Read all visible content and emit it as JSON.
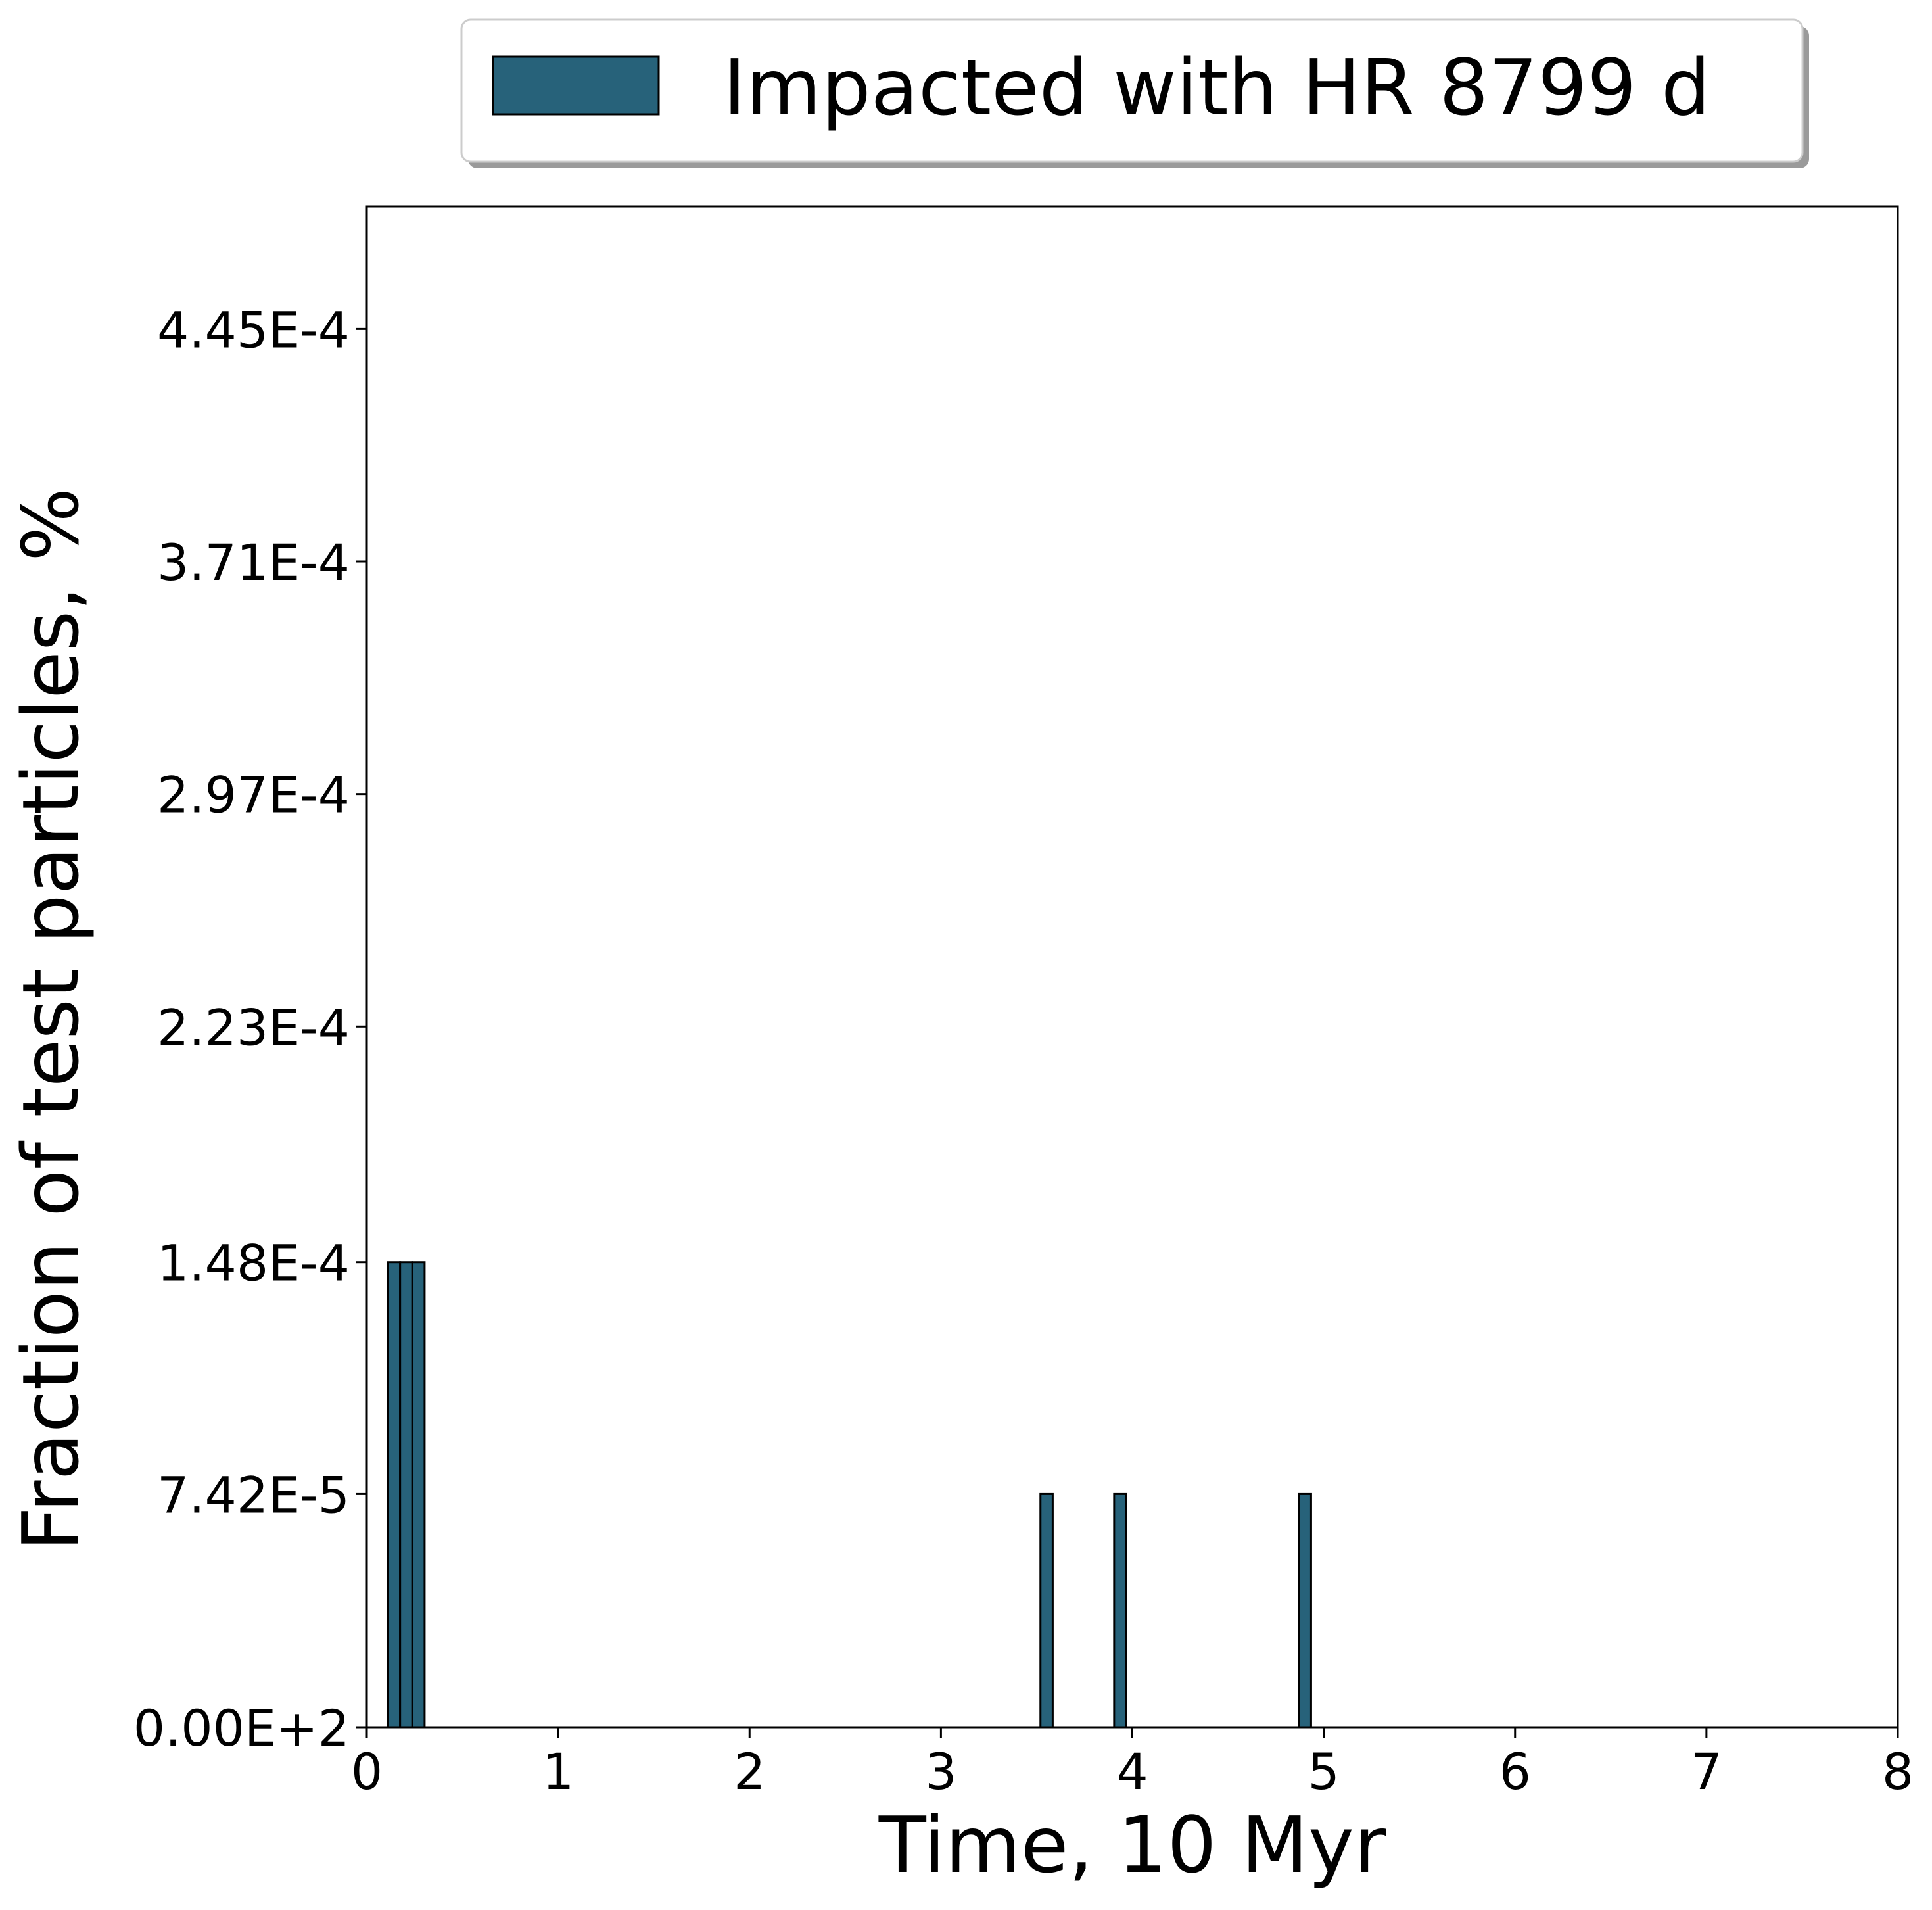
{
  "chart_data": {
    "type": "bar",
    "xlabel": "Time, 10 Myr",
    "ylabel": "Fraction of test particles, %",
    "xlim": [
      0,
      8
    ],
    "ylim": [
      0,
      0.000484
    ],
    "x_ticks": [
      0,
      1,
      2,
      3,
      4,
      5,
      6,
      7,
      8
    ],
    "x_tick_labels": [
      "0",
      "1",
      "2",
      "3",
      "4",
      "5",
      "6",
      "7",
      "8"
    ],
    "y_ticks": [
      0,
      7.42e-05,
      0.000148,
      0.000223,
      0.000297,
      0.000371,
      0.000445
    ],
    "y_tick_labels": [
      "0.00E+2",
      "7.42E-5",
      "1.48E-4",
      "2.23E-4",
      "2.97E-4",
      "3.71E-4",
      "4.45E-4"
    ],
    "grid": false,
    "legend": {
      "placement": "top-center, outside plot",
      "entries": [
        "Impacted with HR 8799 d"
      ]
    },
    "series": [
      {
        "name": "Impacted with HR 8799 d",
        "color": "#27627a",
        "edge_color": "#000000",
        "bin_width": 0.064,
        "bars": [
          {
            "x_start": 0.11,
            "value": 0.000148
          },
          {
            "x_start": 0.174,
            "value": 0.000148
          },
          {
            "x_start": 0.238,
            "value": 0.000148
          },
          {
            "x_start": 3.52,
            "value": 7.42e-05
          },
          {
            "x_start": 3.905,
            "value": 7.42e-05
          },
          {
            "x_start": 4.87,
            "value": 7.42e-05
          }
        ]
      }
    ]
  }
}
